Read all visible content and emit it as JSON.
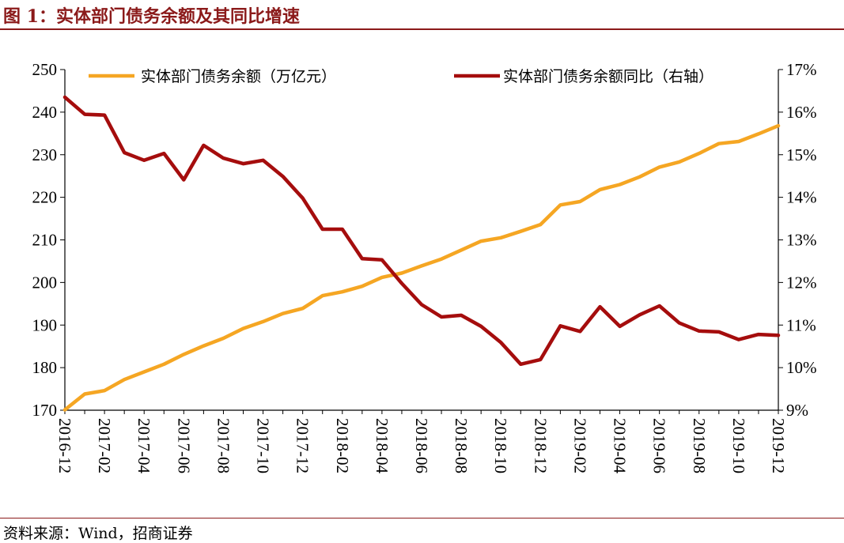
{
  "title": "图 1：实体部门债务余额及其同比增速",
  "source": "资料来源：Wind，招商证券",
  "chart_data": {
    "type": "line",
    "x": [
      "2016-12",
      "2017-01",
      "2017-02",
      "2017-03",
      "2017-04",
      "2017-05",
      "2017-06",
      "2017-07",
      "2017-08",
      "2017-09",
      "2017-10",
      "2017-11",
      "2017-12",
      "2018-01",
      "2018-02",
      "2018-03",
      "2018-04",
      "2018-05",
      "2018-06",
      "2018-07",
      "2018-08",
      "2018-09",
      "2018-10",
      "2018-11",
      "2018-12",
      "2019-01",
      "2019-02",
      "2019-03",
      "2019-04",
      "2019-05",
      "2019-06",
      "2019-07",
      "2019-08",
      "2019-09",
      "2019-10",
      "2019-11",
      "2019-12"
    ],
    "xticks": [
      "2016-12",
      "2017-02",
      "2017-04",
      "2017-06",
      "2017-08",
      "2017-10",
      "2017-12",
      "2018-02",
      "2018-04",
      "2018-06",
      "2018-08",
      "2018-10",
      "2018-12",
      "2019-02",
      "2019-04",
      "2019-06",
      "2019-08",
      "2019-10",
      "2019-12"
    ],
    "series": [
      {
        "name": "实体部门债务余额（万亿元）",
        "axis": "left",
        "color": "#f5a623",
        "values": [
          170.1,
          173.8,
          174.6,
          177.2,
          179.0,
          180.8,
          183.1,
          185.1,
          186.9,
          189.2,
          190.8,
          192.7,
          193.9,
          196.9,
          197.8,
          199.1,
          201.2,
          202.2,
          203.9,
          205.5,
          207.6,
          209.7,
          210.5,
          212.0,
          213.6,
          218.2,
          219.0,
          221.8,
          223.0,
          224.8,
          227.1,
          228.3,
          230.3,
          232.6,
          233.1,
          234.9,
          236.8
        ]
      },
      {
        "name": "实体部门债务余额同比（右轴）",
        "axis": "right",
        "color": "#a50d0d",
        "values": [
          16.35,
          15.95,
          15.93,
          15.05,
          14.87,
          15.03,
          14.41,
          15.22,
          14.92,
          14.79,
          14.87,
          14.49,
          13.98,
          13.25,
          13.25,
          12.56,
          12.53,
          11.98,
          11.48,
          11.19,
          11.23,
          10.97,
          10.59,
          10.08,
          10.19,
          10.98,
          10.85,
          11.43,
          10.97,
          11.24,
          11.45,
          11.05,
          10.86,
          10.84,
          10.66,
          10.78,
          10.76
        ]
      }
    ],
    "yleft": {
      "ticks": [
        "170",
        "180",
        "190",
        "200",
        "210",
        "220",
        "230",
        "240",
        "250"
      ],
      "ylim": [
        170,
        250
      ]
    },
    "yright": {
      "ticks": [
        "9%",
        "10%",
        "11%",
        "12%",
        "13%",
        "14%",
        "15%",
        "16%",
        "17%"
      ],
      "ylim": [
        9,
        17
      ]
    },
    "grid": false,
    "legend_placement": "top"
  }
}
